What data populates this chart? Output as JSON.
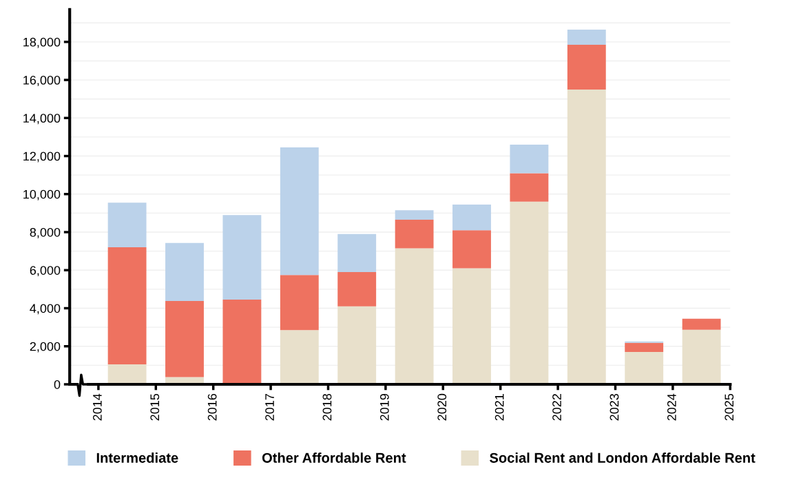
{
  "chart_data": {
    "type": "bar",
    "stacked": true,
    "x": [
      2014.5,
      2015.5,
      2016.5,
      2017.5,
      2018.5,
      2019.5,
      2020.5,
      2021.5,
      2022.5,
      2023.5,
      2024.5
    ],
    "series": [
      {
        "name": "Social Rent and London Affordable Rent",
        "color": "#e8e0cb",
        "values": [
          1050,
          380,
          0,
          2850,
          4100,
          7150,
          6100,
          9600,
          15500,
          1700,
          2870
        ]
      },
      {
        "name": "Other Affordable Rent",
        "color": "#ee7260",
        "values": [
          6150,
          4000,
          4450,
          2900,
          1800,
          1500,
          2000,
          1500,
          2350,
          480,
          580
        ]
      },
      {
        "name": "Intermediate",
        "color": "#bbd2ea",
        "values": [
          2350,
          3050,
          4450,
          6700,
          2000,
          500,
          1350,
          1500,
          800,
          70,
          0
        ]
      }
    ],
    "xlim": [
      2013.5,
      2025
    ],
    "xticks": [
      2014,
      2015,
      2016,
      2017,
      2018,
      2019,
      2020,
      2021,
      2022,
      2023,
      2024,
      2025
    ],
    "ylim": [
      0,
      19700
    ],
    "yticks": [
      0,
      {
        "value": 1000,
        "label": null
      },
      {
        "value": 2000,
        "label": "2,000"
      },
      {
        "value": 3000,
        "label": null
      },
      {
        "value": 4000,
        "label": "4,000"
      },
      {
        "value": 5000,
        "label": null
      },
      {
        "value": 6000,
        "label": "6,000"
      },
      {
        "value": 7000,
        "label": null
      },
      {
        "value": 8000,
        "label": "8,000"
      },
      {
        "value": 9000,
        "label": null
      },
      {
        "value": 10000,
        "label": "10,000"
      },
      {
        "value": 11000,
        "label": null
      },
      {
        "value": 12000,
        "label": "12,000"
      },
      {
        "value": 13000,
        "label": null
      },
      {
        "value": 14000,
        "label": "14,000"
      },
      {
        "value": 15000,
        "label": null
      },
      {
        "value": 16000,
        "label": "16,000"
      },
      {
        "value": 17000,
        "label": null
      },
      {
        "value": 18000,
        "label": "18,000"
      },
      {
        "value": 19000,
        "label": null
      }
    ],
    "grid": "y",
    "legend": "bottom"
  }
}
